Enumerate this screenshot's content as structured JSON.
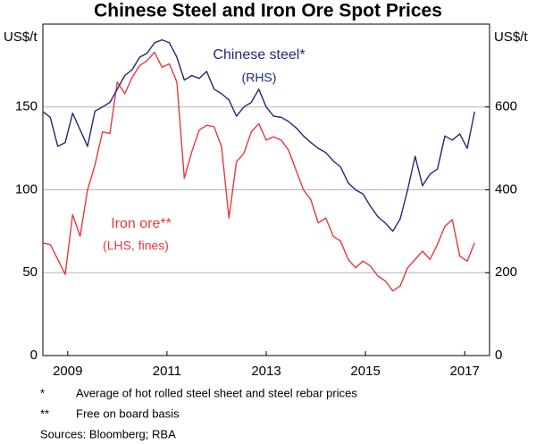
{
  "chart_data": {
    "type": "line",
    "title": "Chinese Steel and Iron Ore Spot Prices",
    "ylabel": "US$/t",
    "y2label": "US$/t",
    "x": [
      2008.5,
      2008.65,
      2008.8,
      2008.95,
      2009.1,
      2009.25,
      2009.4,
      2009.55,
      2009.7,
      2009.85,
      2010.0,
      2010.15,
      2010.3,
      2010.45,
      2010.6,
      2010.75,
      2010.9,
      2011.05,
      2011.2,
      2011.35,
      2011.5,
      2011.65,
      2011.8,
      2011.95,
      2012.1,
      2012.25,
      2012.4,
      2012.55,
      2012.7,
      2012.85,
      2013.0,
      2013.15,
      2013.3,
      2013.45,
      2013.6,
      2013.75,
      2013.9,
      2014.05,
      2014.2,
      2014.35,
      2014.5,
      2014.65,
      2014.8,
      2014.95,
      2015.1,
      2015.25,
      2015.4,
      2015.55,
      2015.7,
      2015.85,
      2016.0,
      2016.15,
      2016.3,
      2016.45,
      2016.6,
      2016.75,
      2016.9,
      2017.05,
      2017.2
    ],
    "series": [
      {
        "name": "Iron ore",
        "color": "#e8383d",
        "axis": "y",
        "values": [
          68,
          67,
          58,
          49,
          85,
          72,
          100,
          115,
          135,
          134,
          165,
          158,
          168,
          175,
          178,
          183,
          174,
          176,
          165,
          107,
          123,
          136,
          139,
          138,
          126,
          83,
          117,
          122,
          135,
          140,
          130,
          132,
          130,
          124,
          112,
          100,
          94,
          80,
          83,
          72,
          69,
          58,
          53,
          57,
          54,
          48,
          45,
          39,
          42,
          53,
          58,
          63,
          58,
          67,
          78,
          82,
          60,
          57,
          68
        ]
      },
      {
        "name": "Chinese steel",
        "color": "#1f2a7a",
        "axis": "y2",
        "values": [
          589,
          575,
          505,
          514,
          585,
          545,
          505,
          590,
          600,
          611,
          643,
          676,
          690,
          720,
          730,
          755,
          762,
          755,
          720,
          665,
          676,
          669,
          686,
          643,
          632,
          617,
          578,
          600,
          611,
          643,
          600,
          578,
          575,
          565,
          550,
          530,
          514,
          500,
          490,
          470,
          455,
          417,
          400,
          390,
          360,
          335,
          320,
          300,
          330,
          400,
          481,
          410,
          438,
          450,
          530,
          520,
          535,
          500,
          589
        ]
      }
    ],
    "annotations": [
      {
        "text": "Chinese steel*",
        "series": 1
      },
      {
        "text": "(RHS)",
        "series": 1
      },
      {
        "text": "Iron ore**",
        "series": 0
      },
      {
        "text": "(LHS, fines)",
        "series": 0
      }
    ],
    "xlim": [
      2008.5,
      2017.5
    ],
    "xticks": [
      2009,
      2011,
      2013,
      2015,
      2017
    ],
    "ylim": [
      0,
      200
    ],
    "yticks": [
      0,
      50,
      100,
      150
    ],
    "y2lim": [
      0,
      800
    ],
    "y2ticks": [
      0,
      200,
      400,
      600
    ],
    "grid": true,
    "notes": [
      {
        "marker": "*",
        "text": "Average of hot rolled steel sheet and steel rebar prices"
      },
      {
        "marker": "**",
        "text": "Free on board basis"
      }
    ],
    "source": "Sources: Bloomberg; RBA"
  }
}
